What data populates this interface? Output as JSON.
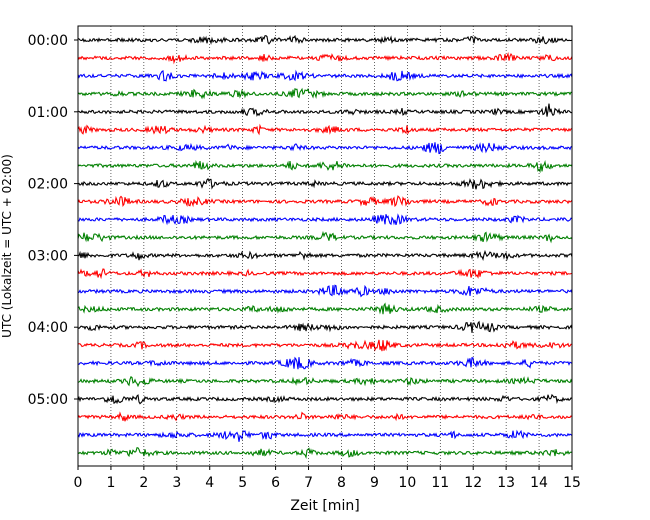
{
  "chart_data": {
    "type": "line",
    "title": "",
    "xlabel": "Zeit  [min]",
    "ylabel": "UTC (Lokalzeit = UTC + 02:00)",
    "xlim": [
      0,
      15
    ],
    "xticks": [
      0,
      1,
      2,
      3,
      4,
      5,
      6,
      7,
      8,
      9,
      10,
      11,
      12,
      13,
      14,
      15
    ],
    "yticks": [
      "00:00",
      "01:00",
      "02:00",
      "03:00",
      "04:00",
      "05:00"
    ],
    "trace_interval_min": 15,
    "trace_count": 24,
    "first_trace": "00:00",
    "last_trace": "05:45",
    "trace_colors": [
      "#000000",
      "#ff0000",
      "#0000ff",
      "#008000"
    ],
    "grid": "vertical dotted lines at every minute",
    "legend": "none"
  }
}
